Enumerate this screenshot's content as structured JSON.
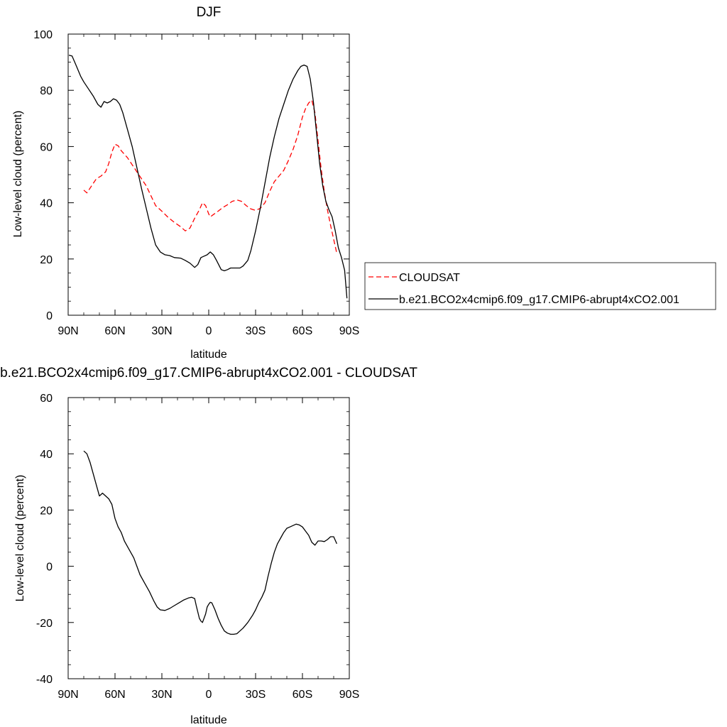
{
  "chart_data": [
    {
      "type": "line",
      "title": "DJF",
      "xlabel": "latitude",
      "ylabel": "Low-level cloud (percent)",
      "xlim": [
        90,
        -90
      ],
      "ylim": [
        0,
        100
      ],
      "x_tick_values": [
        90,
        60,
        30,
        0,
        -30,
        -60,
        -90
      ],
      "x_tick_labels": [
        "90N",
        "60N",
        "30N",
        "0",
        "30S",
        "60S",
        "90S"
      ],
      "y_ticks": [
        0,
        20,
        40,
        60,
        80,
        100
      ],
      "legend_position": "right",
      "series": [
        {
          "name": "CLOUDSAT",
          "color": "#ff0000",
          "style": "dashed",
          "points": [
            [
              80,
              44.5
            ],
            [
              78,
              43.5
            ],
            [
              75,
              46
            ],
            [
              72,
              48.5
            ],
            [
              69,
              49.5
            ],
            [
              66,
              51
            ],
            [
              64,
              54
            ],
            [
              62,
              58
            ],
            [
              60,
              60.8
            ],
            [
              58,
              60.3
            ],
            [
              56,
              58.5
            ],
            [
              52,
              56
            ],
            [
              49,
              53.5
            ],
            [
              46,
              51
            ],
            [
              43,
              48.5
            ],
            [
              40,
              46
            ],
            [
              37,
              42.5
            ],
            [
              34,
              39
            ],
            [
              30,
              37
            ],
            [
              26,
              34.8
            ],
            [
              22,
              33
            ],
            [
              18,
              31.5
            ],
            [
              15,
              30
            ],
            [
              12,
              31
            ],
            [
              9,
              34.5
            ],
            [
              6,
              37.5
            ],
            [
              4,
              40
            ],
            [
              2,
              39
            ],
            [
              0,
              36
            ],
            [
              -1,
              35
            ],
            [
              -3,
              35.8
            ],
            [
              -6,
              37
            ],
            [
              -9,
              38.3
            ],
            [
              -12,
              39.3
            ],
            [
              -15,
              40.5
            ],
            [
              -18,
              41
            ],
            [
              -21,
              40.5
            ],
            [
              -24,
              39
            ],
            [
              -27,
              37.8
            ],
            [
              -30,
              37.3
            ],
            [
              -33,
              38
            ],
            [
              -36,
              40
            ],
            [
              -39,
              44
            ],
            [
              -42,
              47.5
            ],
            [
              -45,
              49.5
            ],
            [
              -48,
              51.5
            ],
            [
              -51,
              55
            ],
            [
              -54,
              59
            ],
            [
              -57,
              64
            ],
            [
              -60,
              70.5
            ],
            [
              -62,
              73.5
            ],
            [
              -64,
              75.5
            ],
            [
              -66,
              76.5
            ],
            [
              -68,
              72
            ],
            [
              -70,
              62
            ],
            [
              -72,
              52
            ],
            [
              -74,
              44
            ],
            [
              -76,
              37.5
            ],
            [
              -78,
              32
            ],
            [
              -80,
              27
            ],
            [
              -82,
              22
            ]
          ]
        },
        {
          "name": "b.e21.BCO2x4cmip6.f09_g17.CMIP6-abrupt4xCO2.001",
          "color": "#000000",
          "style": "solid",
          "points": [
            [
              89.5,
              92.5
            ],
            [
              87.5,
              92.2
            ],
            [
              85,
              89
            ],
            [
              82,
              85
            ],
            [
              80,
              83
            ],
            [
              77,
              80.5
            ],
            [
              74,
              78
            ],
            [
              71,
              75
            ],
            [
              69,
              74
            ],
            [
              67,
              76
            ],
            [
              65,
              75.5
            ],
            [
              63,
              76
            ],
            [
              61,
              77
            ],
            [
              59,
              76.5
            ],
            [
              57,
              75
            ],
            [
              55,
              72
            ],
            [
              52,
              66
            ],
            [
              49,
              60
            ],
            [
              47,
              55
            ],
            [
              45,
              50
            ],
            [
              43,
              45
            ],
            [
              40,
              38
            ],
            [
              37,
              31
            ],
            [
              34,
              25
            ],
            [
              31,
              22.5
            ],
            [
              28,
              21.5
            ],
            [
              25,
              21.2
            ],
            [
              22,
              20.5
            ],
            [
              18,
              20.3
            ],
            [
              15,
              19.5
            ],
            [
              12,
              18.5
            ],
            [
              9,
              17
            ],
            [
              7,
              18
            ],
            [
              5,
              20.5
            ],
            [
              3,
              21
            ],
            [
              1,
              21.5
            ],
            [
              -1,
              22.5
            ],
            [
              -3,
              21.5
            ],
            [
              -5,
              19.5
            ],
            [
              -8,
              16.2
            ],
            [
              -10,
              15.8
            ],
            [
              -12,
              16.2
            ],
            [
              -14,
              16.8
            ],
            [
              -17,
              16.8
            ],
            [
              -20,
              16.8
            ],
            [
              -22,
              17.5
            ],
            [
              -25,
              19.5
            ],
            [
              -27,
              23
            ],
            [
              -30,
              30
            ],
            [
              -33,
              38
            ],
            [
              -36,
              47
            ],
            [
              -39,
              56
            ],
            [
              -42,
              63.5
            ],
            [
              -45,
              70
            ],
            [
              -48,
              75
            ],
            [
              -51,
              80
            ],
            [
              -54,
              84
            ],
            [
              -57,
              87
            ],
            [
              -59,
              88.5
            ],
            [
              -61,
              89
            ],
            [
              -63,
              88.5
            ],
            [
              -65,
              84
            ],
            [
              -67,
              76
            ],
            [
              -69,
              65
            ],
            [
              -71,
              54
            ],
            [
              -73,
              46
            ],
            [
              -75,
              40.5
            ],
            [
              -77,
              37.5
            ],
            [
              -79,
              35
            ],
            [
              -81,
              30
            ],
            [
              -83,
              24
            ],
            [
              -85,
              20.5
            ],
            [
              -87,
              16
            ],
            [
              -88.5,
              6
            ]
          ]
        }
      ]
    },
    {
      "type": "line",
      "title": "b.e21.BCO2x4cmip6.f09_g17.CMIP6-abrupt4xCO2.001 - CLOUDSAT",
      "xlabel": "latitude",
      "ylabel": "Low-level cloud (percent)",
      "xlim": [
        90,
        -90
      ],
      "ylim": [
        -40,
        60
      ],
      "x_tick_values": [
        90,
        60,
        30,
        0,
        -30,
        -60,
        -90
      ],
      "x_tick_labels": [
        "90N",
        "60N",
        "30N",
        "0",
        "30S",
        "60S",
        "90S"
      ],
      "y_ticks": [
        -40,
        -20,
        0,
        20,
        40,
        60
      ],
      "series": [
        {
          "color": "#000000",
          "style": "solid",
          "points": [
            [
              80,
              41
            ],
            [
              78,
              40
            ],
            [
              76,
              37
            ],
            [
              74,
              33
            ],
            [
              72,
              29
            ],
            [
              70,
              25
            ],
            [
              68,
              26
            ],
            [
              66,
              25
            ],
            [
              64,
              24
            ],
            [
              62,
              22
            ],
            [
              60,
              17
            ],
            [
              58,
              14
            ],
            [
              56,
              12
            ],
            [
              54,
              9
            ],
            [
              52,
              7
            ],
            [
              50,
              5
            ],
            [
              48,
              3
            ],
            [
              46,
              0
            ],
            [
              44,
              -3
            ],
            [
              41,
              -6
            ],
            [
              38,
              -9
            ],
            [
              35,
              -12.5
            ],
            [
              33,
              -14.5
            ],
            [
              31,
              -15.5
            ],
            [
              28,
              -15.7
            ],
            [
              25,
              -15
            ],
            [
              22,
              -14
            ],
            [
              19,
              -13
            ],
            [
              16,
              -12
            ],
            [
              13,
              -11.3
            ],
            [
              11,
              -11
            ],
            [
              9,
              -11.5
            ],
            [
              8,
              -14
            ],
            [
              6,
              -18.5
            ],
            [
              5,
              -19.5
            ],
            [
              4,
              -20
            ],
            [
              2,
              -17
            ],
            [
              1,
              -14.5
            ],
            [
              0,
              -13.5
            ],
            [
              -1,
              -12.8
            ],
            [
              -2,
              -13
            ],
            [
              -4,
              -15.5
            ],
            [
              -6,
              -18.5
            ],
            [
              -8,
              -21
            ],
            [
              -10,
              -23
            ],
            [
              -12,
              -23.8
            ],
            [
              -14,
              -24.2
            ],
            [
              -16,
              -24.2
            ],
            [
              -18,
              -24
            ],
            [
              -20,
              -23
            ],
            [
              -22,
              -22
            ],
            [
              -25,
              -20
            ],
            [
              -28,
              -17.5
            ],
            [
              -30,
              -15.5
            ],
            [
              -32,
              -13
            ],
            [
              -34,
              -11
            ],
            [
              -36,
              -8.5
            ],
            [
              -38,
              -3.5
            ],
            [
              -40,
              1
            ],
            [
              -42,
              5
            ],
            [
              -44,
              8
            ],
            [
              -46,
              10
            ],
            [
              -48,
              12
            ],
            [
              -50,
              13.5
            ],
            [
              -52,
              14
            ],
            [
              -54,
              14.5
            ],
            [
              -56,
              15
            ],
            [
              -58,
              14.7
            ],
            [
              -60,
              14
            ],
            [
              -62,
              12.5
            ],
            [
              -64,
              11
            ],
            [
              -66,
              8.5
            ],
            [
              -68,
              7.5
            ],
            [
              -70,
              9
            ],
            [
              -72,
              9
            ],
            [
              -74,
              8.8
            ],
            [
              -76,
              9.5
            ],
            [
              -78,
              10.5
            ],
            [
              -80,
              10.5
            ],
            [
              -82,
              8
            ]
          ]
        }
      ]
    }
  ]
}
